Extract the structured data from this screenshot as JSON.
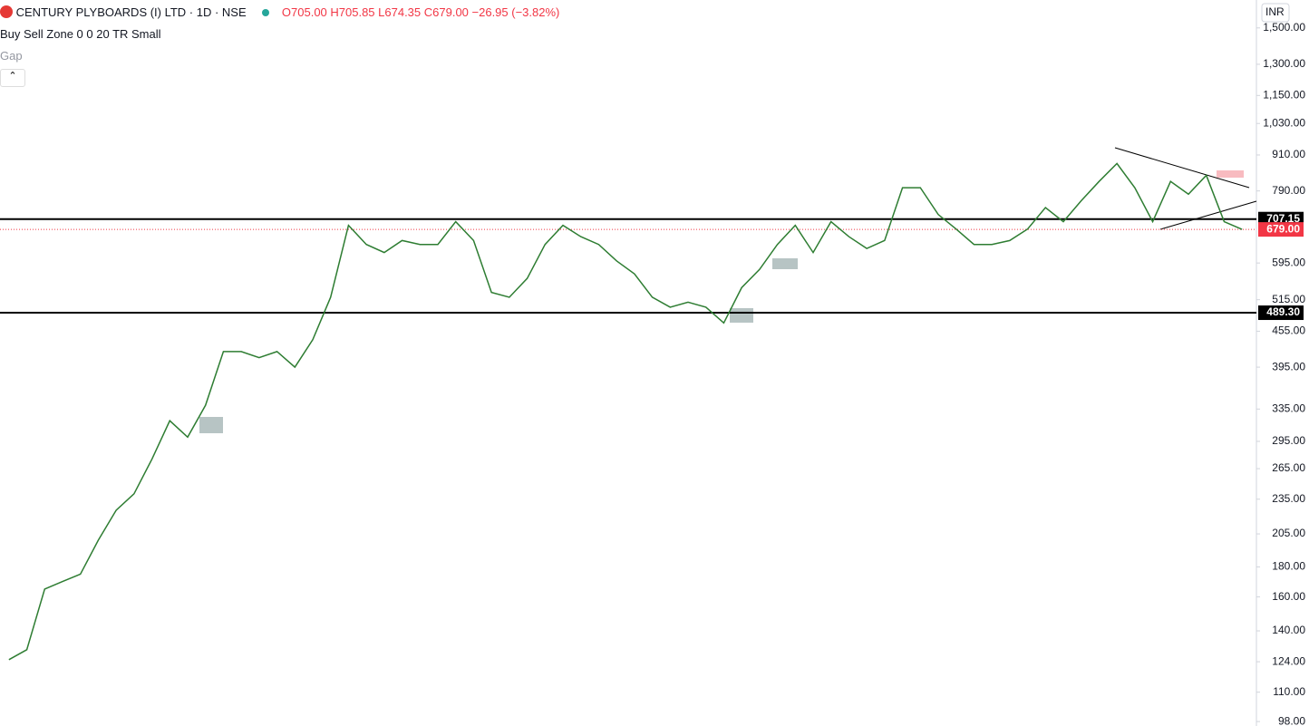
{
  "chart_data": {
    "type": "line",
    "title": "CENTURY PLYBOARDS (I) LTD · 1D · NSE",
    "ohlc_text": "O705.00 H705.85 L674.35 C679.00 −26.95 (−3.82%)",
    "indicator": "Buy Sell Zone 0 0 20 TR Small",
    "indicator2": "Gap",
    "currency": "INR",
    "log_scale": true,
    "categories": [
      null,
      null,
      null,
      null,
      null,
      null,
      null,
      null,
      null,
      null,
      null,
      null,
      null,
      null,
      null,
      null,
      null,
      null,
      null,
      null,
      null,
      null,
      null,
      null,
      null,
      null,
      null,
      null,
      null,
      null,
      null,
      null,
      null,
      null,
      null,
      null,
      null,
      null,
      null,
      null,
      null,
      null,
      null,
      null,
      null,
      null,
      null,
      null,
      null,
      null,
      null,
      null,
      null,
      null,
      null,
      null,
      null,
      null,
      null,
      null,
      null,
      null,
      null,
      null,
      null,
      null,
      null,
      null,
      null,
      null
    ],
    "series": [
      {
        "color": "#2e7d32",
        "values": [
          125,
          130,
          165,
          170,
          175,
          200,
          225,
          240,
          275,
          320,
          300,
          340,
          420,
          420,
          410,
          420,
          395,
          440,
          520,
          690,
          640,
          620,
          650,
          640,
          640,
          700,
          650,
          530,
          520,
          560,
          640,
          690,
          660,
          640,
          600,
          570,
          520,
          500,
          510,
          500,
          470,
          540,
          580,
          640,
          690,
          620,
          700,
          660,
          630,
          650,
          800,
          800,
          720,
          680,
          640,
          640,
          650,
          680,
          740,
          700,
          760,
          820,
          880,
          800,
          700,
          820,
          780,
          840,
          700,
          679
        ]
      }
    ],
    "ylim": [
      96.3,
      1674
    ],
    "yticks": [
      {
        "value": 1500,
        "label": "1,500.00"
      },
      {
        "value": 1300,
        "label": "1,300.00"
      },
      {
        "value": 1150,
        "label": "1,150.00"
      },
      {
        "value": 1030,
        "label": "1,030.00"
      },
      {
        "value": 910,
        "label": "910.00"
      },
      {
        "value": 790,
        "label": "790.00"
      },
      {
        "value": 595,
        "label": "595.00"
      },
      {
        "value": 515,
        "label": "515.00"
      },
      {
        "value": 455,
        "label": "455.00"
      },
      {
        "value": 395,
        "label": "395.00"
      },
      {
        "value": 335,
        "label": "335.00"
      },
      {
        "value": 295,
        "label": "295.00"
      },
      {
        "value": 265,
        "label": "265.00"
      },
      {
        "value": 235,
        "label": "235.00"
      },
      {
        "value": 205,
        "label": "205.00"
      },
      {
        "value": 180,
        "label": "180.00"
      },
      {
        "value": 160,
        "label": "160.00"
      },
      {
        "value": 140,
        "label": "140.00"
      },
      {
        "value": 124,
        "label": "124.00"
      },
      {
        "value": 110,
        "label": "110.00"
      },
      {
        "value": 98,
        "label": "98.00"
      }
    ],
    "levels": [
      {
        "value": 707.15,
        "label": "707.15",
        "color": "#000000"
      },
      {
        "value": 489.3,
        "label": "489.30",
        "color": "#000000"
      }
    ],
    "last_price": {
      "value": 679,
      "label": "679.00",
      "color": "#f23645"
    }
  }
}
